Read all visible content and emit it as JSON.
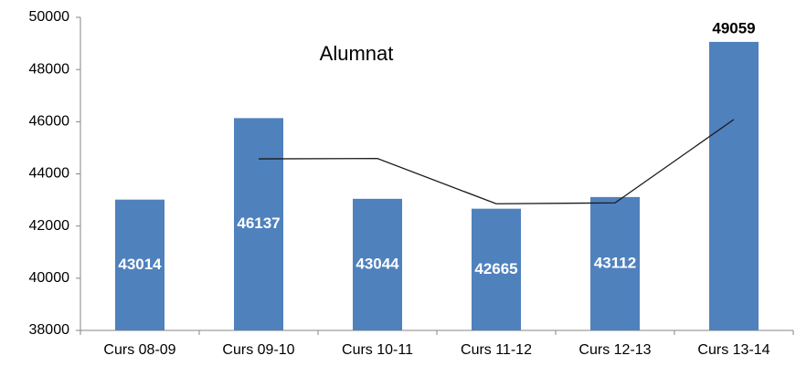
{
  "chart_data": {
    "type": "bar",
    "title": "Alumnat",
    "categories": [
      "Curs 08-09",
      "Curs 09-10",
      "Curs 10-11",
      "Curs 11-12",
      "Curs 12-13",
      "Curs 13-14"
    ],
    "series": [
      {
        "type": "bar",
        "color": "#4f81bd",
        "values": [
          43014,
          46137,
          43044,
          42665,
          43112,
          49059
        ]
      },
      {
        "type": "line",
        "color": "#1a1a1a",
        "values": [
          null,
          44575.5,
          44590.5,
          42854.5,
          42888.5,
          46085.5
        ]
      }
    ],
    "ylim": [
      38000,
      50000
    ],
    "yticks": [
      38000,
      40000,
      42000,
      44000,
      46000,
      48000,
      50000
    ],
    "grid": false
  }
}
